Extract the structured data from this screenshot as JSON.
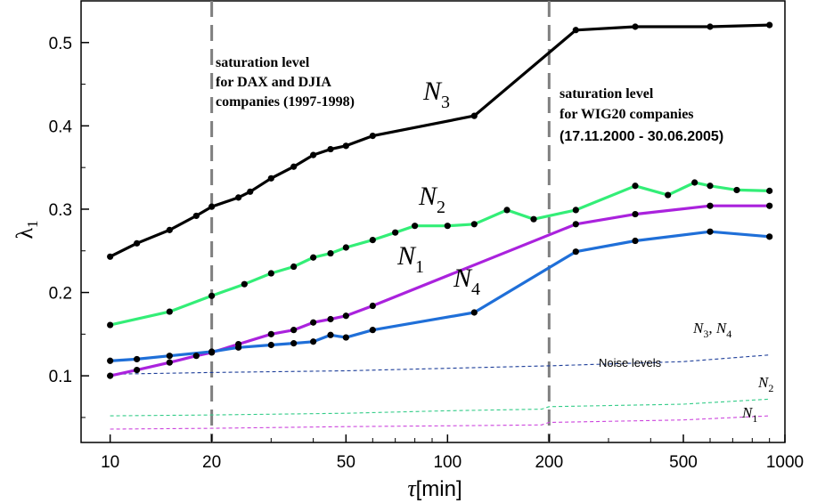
{
  "chart_data": {
    "type": "line",
    "xscale": "log",
    "xlim": [
      8.2,
      1000
    ],
    "ylim": [
      0.02,
      0.55
    ],
    "x_ticks": [
      10,
      20,
      50,
      100,
      200,
      500,
      1000
    ],
    "x_tick_labels": [
      "10",
      "20",
      "50",
      "100",
      "200",
      "500",
      "1000"
    ],
    "y_ticks": [
      0.1,
      0.2,
      0.3,
      0.4,
      0.5
    ],
    "y_tick_labels": [
      "0.1",
      "0.2",
      "0.3",
      "0.4",
      "0.5"
    ],
    "ylabel": {
      "main": "λ",
      "sub": "1"
    },
    "xlabel": {
      "sym": "τ",
      "unit": "[min]"
    },
    "series": [
      {
        "name": "N3",
        "label_main": "N",
        "label_sub": "3",
        "color": "#000000",
        "x": [
          10,
          12,
          15,
          18,
          20,
          24,
          26,
          30,
          35,
          40,
          45,
          50,
          60,
          120,
          240,
          360,
          600,
          900
        ],
        "y": [
          0.243,
          0.259,
          0.275,
          0.292,
          0.303,
          0.314,
          0.321,
          0.337,
          0.351,
          0.365,
          0.372,
          0.376,
          0.388,
          0.412,
          0.515,
          0.519,
          0.519,
          0.521
        ]
      },
      {
        "name": "N2",
        "label_main": "N",
        "label_sub": "2",
        "color": "#33ee77",
        "x": [
          10,
          15,
          20,
          25,
          30,
          35,
          40,
          45,
          50,
          60,
          70,
          80,
          100,
          120,
          150,
          180,
          240,
          360,
          450,
          540,
          600,
          720,
          900
        ],
        "y": [
          0.161,
          0.177,
          0.196,
          0.21,
          0.223,
          0.231,
          0.242,
          0.247,
          0.254,
          0.263,
          0.272,
          0.28,
          0.28,
          0.282,
          0.299,
          0.288,
          0.299,
          0.328,
          0.317,
          0.332,
          0.328,
          0.323,
          0.322
        ]
      },
      {
        "name": "N1",
        "label_main": "N",
        "label_sub": "1",
        "color": "#aa22dd",
        "x": [
          10,
          12,
          15,
          18,
          20,
          24,
          30,
          35,
          40,
          45,
          50,
          60,
          240,
          360,
          600,
          900
        ],
        "y": [
          0.1,
          0.107,
          0.116,
          0.124,
          0.128,
          0.138,
          0.15,
          0.155,
          0.164,
          0.168,
          0.172,
          0.184,
          0.282,
          0.294,
          0.304,
          0.304
        ]
      },
      {
        "name": "N4",
        "label_main": "N",
        "label_sub": "4",
        "color": "#1f6fd8",
        "x": [
          10,
          12,
          15,
          20,
          24,
          30,
          35,
          40,
          45,
          50,
          60,
          120,
          240,
          360,
          600,
          900
        ],
        "y": [
          0.118,
          0.12,
          0.124,
          0.129,
          0.134,
          0.137,
          0.139,
          0.141,
          0.149,
          0.146,
          0.155,
          0.176,
          0.249,
          0.262,
          0.273,
          0.267
        ]
      }
    ],
    "noise_series": [
      {
        "name": "N3, N4",
        "color": "#1c3d99",
        "x": [
          10,
          20,
          50,
          100,
          200,
          500,
          900
        ],
        "y": [
          0.102,
          0.104,
          0.106,
          0.109,
          0.112,
          0.117,
          0.125
        ]
      },
      {
        "name": "N2",
        "color": "#33cc88",
        "x": [
          10,
          20,
          50,
          100,
          190,
          200,
          500,
          900
        ],
        "y": [
          0.052,
          0.053,
          0.055,
          0.058,
          0.06,
          0.063,
          0.066,
          0.072
        ]
      },
      {
        "name": "N1",
        "color": "#cc44dd",
        "x": [
          10,
          20,
          50,
          100,
          190,
          200,
          500,
          900
        ],
        "y": [
          0.036,
          0.037,
          0.039,
          0.04,
          0.041,
          0.044,
          0.047,
          0.052
        ]
      }
    ],
    "vlines": [
      20,
      200
    ],
    "annotations": {
      "sat1": [
        "saturation level",
        "for DAX and DJIA",
        "companies (1997-1998)"
      ],
      "sat2": [
        "saturation level",
        "for WIG20 companies",
        "(17.11.2000 - 30.06.2005)"
      ],
      "noise_title": "Noise levels",
      "noise_n34": {
        "a_main": "N",
        "a_sub": "3",
        "sep": ", ",
        "b_main": "N",
        "b_sub": "4"
      },
      "noise_n2": {
        "main": "N",
        "sub": "2"
      },
      "noise_n1": {
        "main": "N",
        "sub": "1"
      }
    }
  }
}
